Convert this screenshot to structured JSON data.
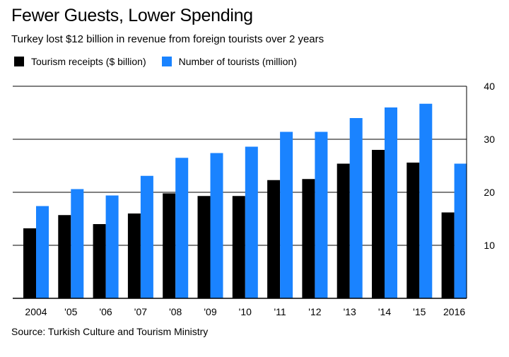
{
  "chart_data": {
    "type": "bar",
    "title": "Fewer Guests, Lower Spending",
    "subtitle": "Turkey lost $12 billion in revenue from foreign tourists over 2 years",
    "categories": [
      "2004",
      "'05",
      "'06",
      "'07",
      "'08",
      "'09",
      "'10",
      "'11",
      "'12",
      "'13",
      "'14",
      "'15",
      "2016"
    ],
    "series": [
      {
        "name": "Tourism receipts ($ billion)",
        "color": "#000000",
        "values": [
          13.2,
          15.7,
          14.0,
          16.0,
          19.8,
          19.3,
          19.3,
          22.3,
          22.5,
          25.4,
          28.0,
          25.6,
          16.2
        ]
      },
      {
        "name": "Number of tourists (million)",
        "color": "#1a83ff",
        "values": [
          17.4,
          20.6,
          19.4,
          23.1,
          26.5,
          27.4,
          28.6,
          31.4,
          31.4,
          34.0,
          36.0,
          36.7,
          25.4
        ]
      }
    ],
    "yticks": [
      "10",
      "20",
      "30",
      "40"
    ],
    "ylim": [
      0,
      40
    ],
    "ylabel": "",
    "xlabel": "",
    "source": "Source: Turkish Culture and Tourism Ministry"
  }
}
